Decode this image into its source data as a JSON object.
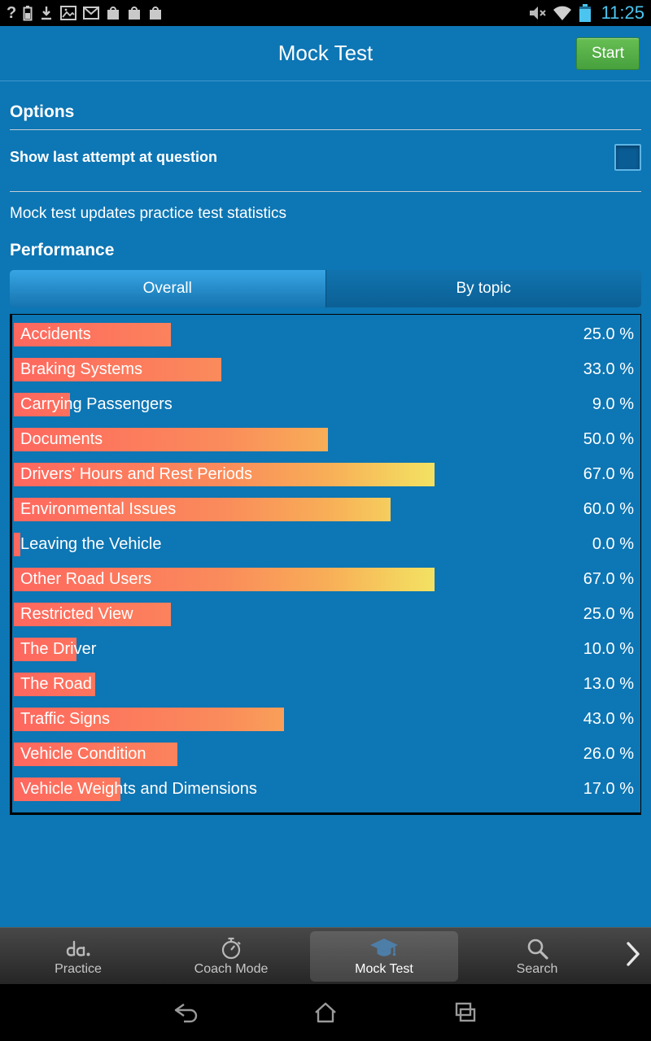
{
  "status_bar": {
    "time": "11:25",
    "left_icons": [
      "signal-question-icon",
      "battery-status-icon",
      "download-icon",
      "screenshot-icon",
      "gmail-icon",
      "app-box-icon",
      "app-box-icon",
      "app-box-icon"
    ],
    "right_icons": [
      "mute-icon",
      "wifi-icon",
      "battery-icon"
    ]
  },
  "header": {
    "title": "Mock Test",
    "start_button": "Start"
  },
  "options": {
    "heading": "Options",
    "show_last_attempt": {
      "label": "Show last attempt at question",
      "checked": false
    },
    "note": "Mock test updates practice test statistics"
  },
  "performance": {
    "heading": "Performance",
    "tabs": [
      {
        "label": "Overall",
        "selected": true
      },
      {
        "label": "By topic",
        "selected": false
      }
    ]
  },
  "chart_data": {
    "type": "bar",
    "orientation": "horizontal",
    "title": "Performance - Overall",
    "categories": [
      "Accidents",
      "Braking Systems",
      "Carrying Passengers",
      "Documents",
      "Drivers' Hours and Rest Periods",
      "Environmental Issues",
      "Leaving the Vehicle",
      "Other Road Users",
      "Restricted View",
      "The Driver",
      "The Road",
      "Traffic Signs",
      "Vehicle Condition",
      "Vehicle Weights and Dimensions"
    ],
    "values": [
      25.0,
      33.0,
      9.0,
      50.0,
      67.0,
      60.0,
      0.0,
      67.0,
      25.0,
      10.0,
      13.0,
      43.0,
      26.0,
      17.0
    ],
    "value_labels": [
      "25.0 %",
      "33.0 %",
      "9.0 %",
      "50.0 %",
      "67.0 %",
      "60.0 %",
      "0.0 %",
      "67.0 %",
      "25.0 %",
      "10.0 %",
      "13.0 %",
      "43.0 %",
      "26.0 %",
      "17.0 %"
    ],
    "xlim": [
      0,
      100
    ],
    "grid": false,
    "bar_gradient": [
      "#ff675f",
      "#f8ae57",
      "#f1ee68"
    ]
  },
  "bottom_nav": {
    "items": [
      {
        "label": "Practice",
        "icon": "practice-icon",
        "selected": false
      },
      {
        "label": "Coach Mode",
        "icon": "stopwatch-icon",
        "selected": false
      },
      {
        "label": "Mock Test",
        "icon": "graduation-cap-icon",
        "selected": true
      },
      {
        "label": "Search",
        "icon": "search-icon",
        "selected": false
      }
    ],
    "more_icon": "chevron-right-icon"
  },
  "android_nav": {
    "buttons": [
      "back",
      "home",
      "recents"
    ]
  }
}
